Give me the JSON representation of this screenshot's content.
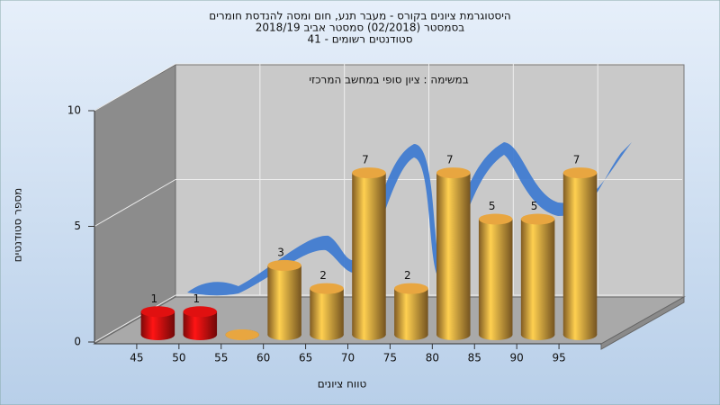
{
  "chart_data": {
    "type": "histogram",
    "title": "היסטוגרמת ציונים בקורס - מעבר תנע, חום ומסה להנדסת חומרים",
    "subtitle": "בסמסטר  (02/2018)  סמסטר אביב 2018/19",
    "subtitle2": "סטודנטים רשומים - 41",
    "annotation": "במשימה : ציון סופי במחשב המרכזי",
    "x_label": "טווח ציונים",
    "y_label": "מספר סטודנטים",
    "bins": [
      45,
      50,
      55,
      60,
      65,
      70,
      75,
      80,
      85,
      90,
      95,
      100
    ],
    "values": [
      1,
      1,
      0,
      3,
      2,
      7,
      2,
      7,
      5,
      5,
      7
    ],
    "colors": [
      "#e01010",
      "#e01010",
      "#e8a640",
      "#e8a640",
      "#e8a640",
      "#e8a640",
      "#e8a640",
      "#e8a640",
      "#e8a640",
      "#e8a640",
      "#e8a640"
    ],
    "xlim": [
      40,
      100
    ],
    "xticks": [
      45,
      50,
      55,
      60,
      65,
      70,
      75,
      80,
      85,
      90,
      95
    ],
    "ylim": [
      0,
      10
    ],
    "yticks": [
      0,
      5,
      10
    ],
    "grid": true
  }
}
